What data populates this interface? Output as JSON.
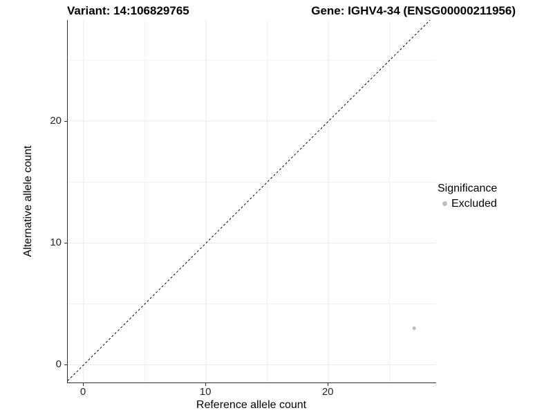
{
  "figure": {
    "kind": "scatter-plot-figure",
    "background": "#ffffff"
  },
  "chart_data": {
    "type": "scatter",
    "title_left": "Variant: 14:106829765",
    "title_right": "Gene: IGHV4-34 (ENSG00000211956)",
    "xlabel": "Reference allele count",
    "ylabel": "Alternative allele count",
    "xlim": [
      -1.3,
      28.8
    ],
    "ylim": [
      -1.45,
      28.3
    ],
    "x_ticks": [
      0,
      10,
      20
    ],
    "y_ticks": [
      0,
      10,
      20
    ],
    "x_minor_ticks": [
      5,
      15,
      25
    ],
    "y_minor_ticks": [
      5,
      15,
      25
    ],
    "grid": "major and minor, light gray on white",
    "identity_line": {
      "style": "dashed",
      "slope": 1,
      "intercept": 0,
      "color": "#000000"
    },
    "series": [
      {
        "name": "Excluded",
        "color": "#bdbdbd",
        "points": [
          {
            "x": 27,
            "y": 3
          }
        ]
      }
    ],
    "legend": {
      "title": "Significance",
      "position": "right",
      "entries": [
        {
          "label": "Excluded",
          "color": "#bdbdbd",
          "marker": "circle"
        }
      ]
    }
  },
  "colors": {
    "grid_major": "#e8e8e8",
    "grid_minor": "#f2f2f2",
    "axis_line": "#2e2e2e",
    "tick_text": "#262626",
    "point": "#bdbdbd",
    "identity_line": "#000000",
    "background": "#ffffff"
  }
}
